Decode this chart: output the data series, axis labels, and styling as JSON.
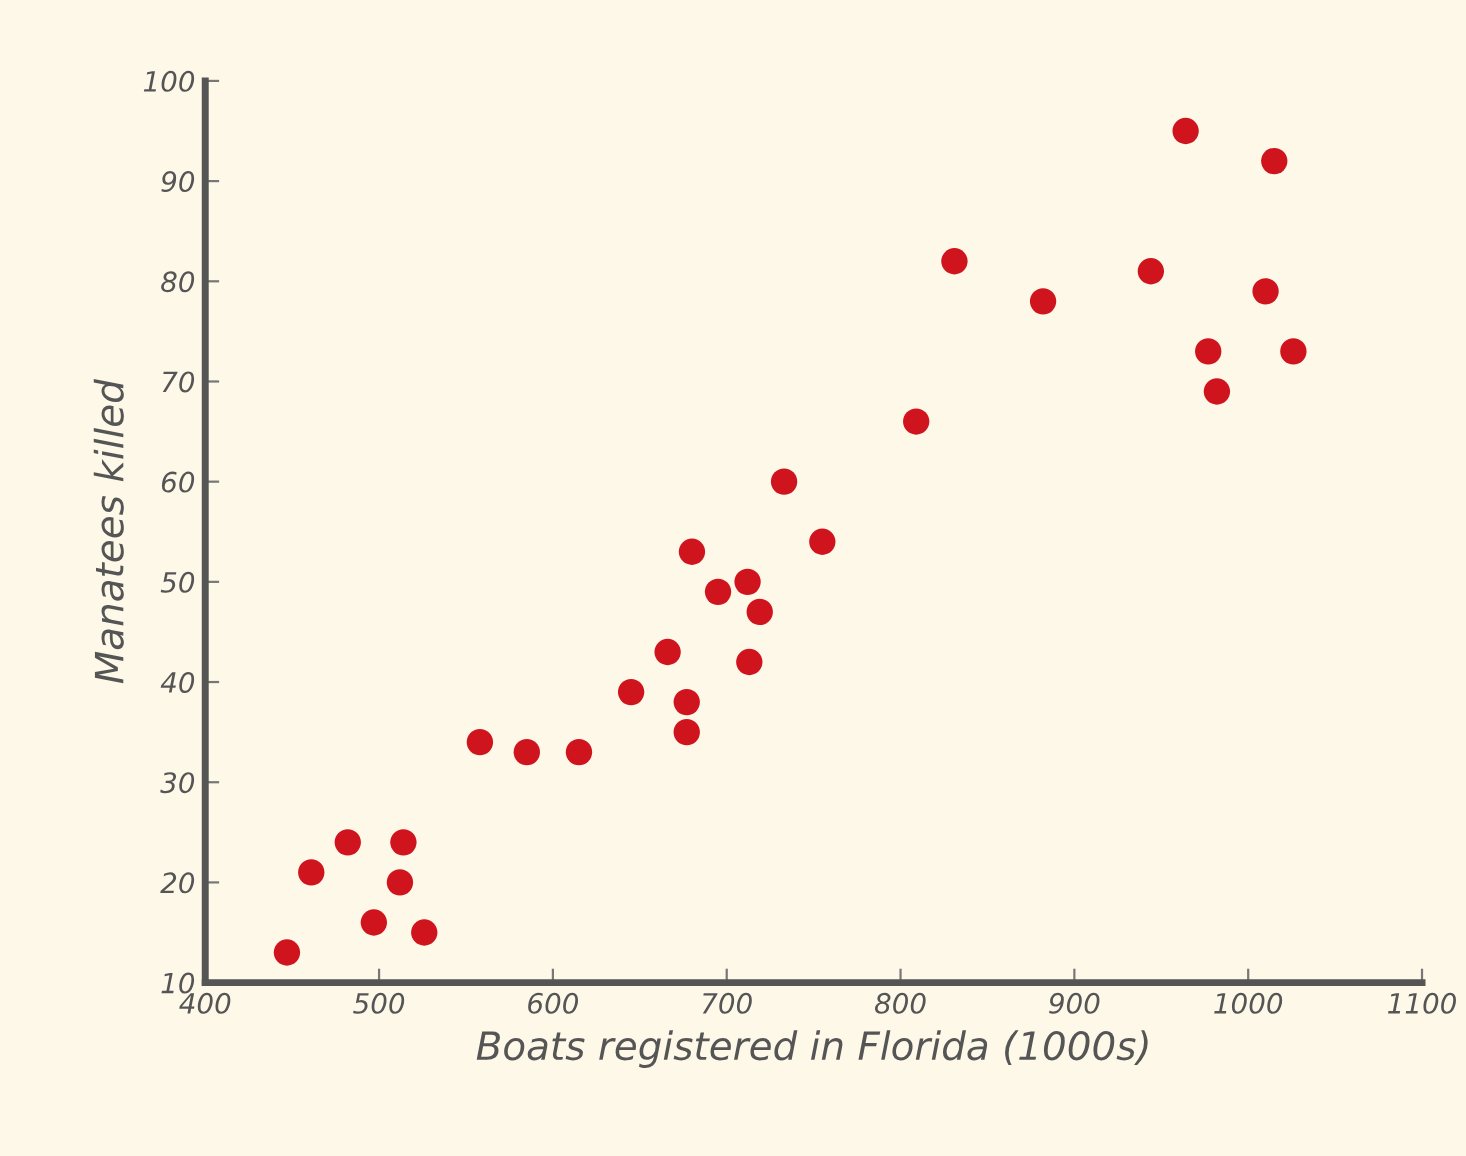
{
  "chart_data": {
    "type": "scatter",
    "xlabel": "Boats registered in Florida (1000s)",
    "ylabel": "Manatees killed",
    "x": [
      447,
      461,
      482,
      497,
      514,
      512,
      526,
      558,
      585,
      615,
      645,
      666,
      677,
      677,
      680,
      695,
      712,
      719,
      713,
      733,
      755,
      809,
      831,
      882,
      944,
      964,
      1015,
      1010,
      977,
      982,
      1026
    ],
    "series": [
      {
        "color": "#d0141e",
        "values": [
          13,
          21,
          24,
          16,
          24,
          20,
          15,
          34,
          33,
          33,
          39,
          43,
          38,
          35,
          53,
          49,
          50,
          47,
          42,
          60,
          54,
          66,
          82,
          78,
          81,
          95,
          92,
          79,
          73,
          69,
          73
        ]
      }
    ],
    "xlim": [
      400,
      1100
    ],
    "xticks": [
      400,
      500,
      600,
      700,
      800,
      900,
      1000,
      1100
    ],
    "ylim": [
      10,
      100
    ],
    "yticks": [
      10,
      20,
      30,
      40,
      50,
      60,
      70,
      80,
      90,
      100
    ],
    "grid": false,
    "marker": "circle"
  }
}
